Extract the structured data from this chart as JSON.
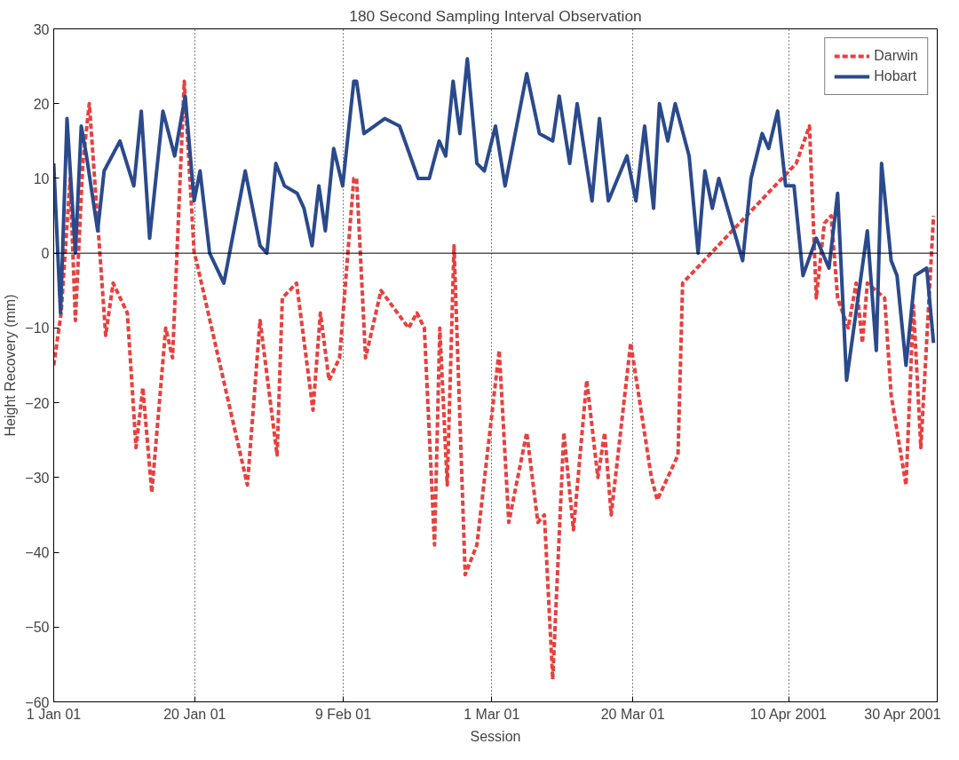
{
  "chart_data": {
    "type": "line",
    "title": "180 Second Sampling Interval Observation",
    "xlabel": "Session",
    "ylabel": "Height Recovery (mm)",
    "xlim": [
      "2001-01-01",
      "2001-04-30"
    ],
    "xticks": [
      {
        "value": "2001-01-01",
        "label": "1 Jan 01"
      },
      {
        "value": "2001-01-20",
        "label": "20 Jan 01"
      },
      {
        "value": "2001-02-09",
        "label": "9 Feb 01"
      },
      {
        "value": "2001-03-01",
        "label": "1 Mar 01"
      },
      {
        "value": "2001-03-20",
        "label": "20 Mar 01"
      },
      {
        "value": "2001-04-10",
        "label": "10 Apr 2001"
      },
      {
        "value": "2001-04-30",
        "label": "30 Apr 2001"
      }
    ],
    "ylim": [
      -60,
      30
    ],
    "yticks": [
      -60,
      -50,
      -40,
      -30,
      -20,
      -10,
      0,
      10,
      20,
      30
    ],
    "grid": "x",
    "legend": "top right",
    "ref_lines": [
      {
        "axis": "y",
        "value": 0,
        "color": "#000000",
        "line_style": "solid"
      }
    ],
    "series": [
      {
        "name": "Darwin",
        "color": "#e8403f",
        "line_style": "dashed",
        "x": [
          "2001-01-01",
          "2001-01-02",
          "2001-01-03T05:00",
          "2001-01-03T22:00",
          "2001-01-04T22:00",
          "2001-01-05T19:00",
          "2001-01-08",
          "2001-01-09",
          "2001-01-10T22:00",
          "2001-01-12T02:00",
          "2001-01-13",
          "2001-01-14T05:00",
          "2001-01-16T02:00",
          "2001-01-17",
          "2001-01-18T14:00",
          "2001-01-19T22:00",
          "2001-01-20T05:00",
          "2001-01-27T02:00",
          "2001-01-28T19:00",
          "2001-01-31T02:00",
          "2001-01-31T19:00",
          "2001-02-02T17:00",
          "2001-02-04T22:00",
          "2001-02-05T22:00",
          "2001-02-07T02:00",
          "2001-02-08T12:00",
          "2001-02-10T10:00",
          "2001-02-10T19:00",
          "2001-02-12",
          "2001-02-14T02:00",
          "2001-02-17T19:00",
          "2001-02-18T22:00",
          "2001-02-19T22:00",
          "2001-02-21T07:00",
          "2001-02-22",
          "2001-02-23",
          "2001-02-23T22:00",
          "2001-02-25T10:00",
          "2001-02-27",
          "2001-03-02",
          "2001-03-03T07:00",
          "2001-03-05T17:00",
          "2001-03-07T05:00",
          "2001-03-08T02:00",
          "2001-03-09T05:00",
          "2001-03-10T17:00",
          "2001-03-12",
          "2001-03-13T19:00",
          "2001-03-15T07:00",
          "2001-03-16T05:00",
          "2001-03-17T02:00",
          "2001-03-19T17:00",
          "2001-03-22T12:00",
          "2001-03-23T07:00",
          "2001-03-26T02:00",
          "2001-03-26T17:00",
          "2001-04-11",
          "2001-04-12T19:00",
          "2001-04-13T17:00",
          "2001-04-14T19:00",
          "2001-04-15T17:00",
          "2001-04-16T14:00",
          "2001-04-18",
          "2001-04-19T02:00",
          "2001-04-19T22:00",
          "2001-04-20T14:00",
          "2001-04-22T22:00",
          "2001-04-23T19:00",
          "2001-04-25T19:00",
          "2001-04-26T19:00",
          "2001-04-27T19:00",
          "2001-04-29T12:00"
        ],
        "values": [
          -15,
          -8,
          10,
          -9,
          12,
          20,
          -11,
          -4,
          -8,
          -26,
          -18,
          -32,
          -10,
          -14,
          23,
          0,
          -1,
          -31,
          -9,
          -27,
          -6,
          -4,
          -21,
          -8,
          -17,
          -14,
          10,
          10,
          -14,
          -5,
          -10,
          -8,
          -10,
          -39,
          -10,
          -31,
          1,
          -43,
          -39,
          -13,
          -36,
          -24,
          -36,
          -35,
          -57,
          -24,
          -37,
          -17,
          -30,
          -24,
          -35,
          -12,
          -30,
          -33,
          -27,
          -4,
          12,
          17,
          -6,
          4,
          5,
          -6,
          -10,
          -4,
          -12,
          -4,
          -6,
          -19,
          -31,
          -7,
          -26,
          5
        ]
      },
      {
        "name": "Hobart",
        "color": "#2b4a8c",
        "line_style": "solid",
        "x": [
          "2001-01-01",
          "2001-01-01T22:00",
          "2001-01-02T19:00",
          "2001-01-03T22:00",
          "2001-01-04T17:00",
          "2001-01-05T10:00",
          "2001-01-06T22:00",
          "2001-01-07T19:00",
          "2001-01-09T22:00",
          "2001-01-11T19:00",
          "2001-01-12T19:00",
          "2001-01-13T22:00",
          "2001-01-15T17:00",
          "2001-01-17T07:00",
          "2001-01-18T17:00",
          "2001-01-19T22:00",
          "2001-01-20T17:00",
          "2001-01-22",
          "2001-01-23T22:00",
          "2001-01-26T19:00",
          "2001-01-28T19:00",
          "2001-01-29T17:00",
          "2001-01-30T22:00",
          "2001-02-01T02:00",
          "2001-02-02T19:00",
          "2001-02-03T17:00",
          "2001-02-04T19:00",
          "2001-02-05T17:00",
          "2001-02-06T14:00",
          "2001-02-07T17:00",
          "2001-02-08T22:00",
          "2001-02-10T10:00",
          "2001-02-10T19:00",
          "2001-02-11T19:00",
          "2001-02-14T14:00",
          "2001-02-16T14:00",
          "2001-02-19T02:00",
          "2001-02-20T14:00",
          "2001-02-21T22:00",
          "2001-02-22T19:00",
          "2001-02-23T19:00",
          "2001-02-24T17:00",
          "2001-02-25T17:00",
          "2001-02-27",
          "2001-02-28",
          "2001-03-01T12:00",
          "2001-03-02T19:00",
          "2001-03-05T17:00",
          "2001-03-07T10:00",
          "2001-03-09T05:00",
          "2001-03-10T02:00",
          "2001-03-11T12:00",
          "2001-03-12T12:00",
          "2001-03-14T12:00",
          "2001-03-15T12:00",
          "2001-03-16T17:00",
          "2001-03-19T05:00",
          "2001-03-20T10:00",
          "2001-03-21T14:00",
          "2001-03-22T19:00",
          "2001-03-23T14:00",
          "2001-03-24T17:00",
          "2001-03-25T17:00",
          "2001-03-27T14:00",
          "2001-03-28T19:00",
          "2001-03-29T17:00",
          "2001-03-30T17:00",
          "2001-03-31T14:00",
          "2001-04-03T19:00",
          "2001-04-04T22:00",
          "2001-04-06T10:00",
          "2001-04-07T07:00",
          "2001-04-08T12:00",
          "2001-04-09T14:00",
          "2001-04-10T17:00",
          "2001-04-11T22:00",
          "2001-04-13T17:00",
          "2001-04-15T10:00",
          "2001-04-16T14:00",
          "2001-04-17T19:00",
          "2001-04-20T14:00",
          "2001-04-21T19:00",
          "2001-04-22T12:00",
          "2001-04-23T19:00",
          "2001-04-24T14:00",
          "2001-04-25T19:00",
          "2001-04-27",
          "2001-04-28T14:00",
          "2001-04-29T12:00"
        ],
        "values": [
          12,
          -8,
          18,
          0,
          17,
          13,
          3,
          11,
          15,
          9,
          19,
          2,
          19,
          13,
          21,
          7,
          11,
          0,
          -4,
          11,
          1,
          0,
          12,
          9,
          8,
          6,
          1,
          9,
          3,
          14,
          9,
          23,
          23,
          16,
          18,
          17,
          10,
          10,
          15,
          13,
          23,
          16,
          26,
          12,
          11,
          17,
          9,
          24,
          16,
          15,
          21,
          12,
          20,
          7,
          18,
          7,
          13,
          7,
          17,
          6,
          20,
          15,
          20,
          13,
          0,
          11,
          6,
          10,
          -1,
          10,
          16,
          14,
          19,
          9,
          9,
          -3,
          2,
          -2,
          8,
          -17,
          3,
          -13,
          12,
          -1,
          -3,
          -15,
          -3,
          -2,
          -12
        ]
      }
    ]
  }
}
